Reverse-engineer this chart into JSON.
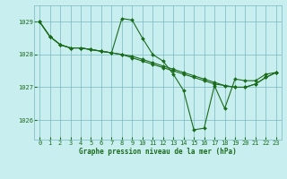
{
  "xlabel": "Graphe pression niveau de la mer (hPa)",
  "bg_color": "#c8eef0",
  "grid_color": "#7ab8be",
  "line_color": "#1a6b1a",
  "ylim": [
    1025.4,
    1029.5
  ],
  "xlim": [
    -0.5,
    23.5
  ],
  "yticks": [
    1026,
    1027,
    1028,
    1029
  ],
  "xticks": [
    0,
    1,
    2,
    3,
    4,
    5,
    6,
    7,
    8,
    9,
    10,
    11,
    12,
    13,
    14,
    15,
    16,
    17,
    18,
    19,
    20,
    21,
    22,
    23
  ],
  "series1": [
    1029.0,
    1028.55,
    1028.3,
    1028.2,
    1028.2,
    1028.15,
    1028.1,
    1028.05,
    1029.1,
    1029.05,
    1028.5,
    1028.0,
    1027.8,
    1027.4,
    1026.9,
    1025.7,
    1025.75,
    1027.05,
    1026.35,
    1027.25,
    1027.2,
    1027.2,
    1027.4,
    1027.45
  ],
  "series2": [
    1029.0,
    1028.55,
    1028.3,
    1028.2,
    1028.2,
    1028.15,
    1028.1,
    1028.05,
    1028.0,
    1027.9,
    1027.8,
    1027.7,
    1027.6,
    1027.5,
    1027.4,
    1027.3,
    1027.2,
    1027.1,
    1027.05,
    1027.0,
    1027.0,
    1027.1,
    1027.3,
    1027.45
  ],
  "series3": [
    1029.0,
    1028.55,
    1028.3,
    1028.2,
    1028.2,
    1028.15,
    1028.1,
    1028.05,
    1028.0,
    1027.95,
    1027.85,
    1027.75,
    1027.65,
    1027.55,
    1027.45,
    1027.35,
    1027.25,
    1027.15,
    1027.05,
    1027.0,
    1027.0,
    1027.1,
    1027.3,
    1027.45
  ]
}
